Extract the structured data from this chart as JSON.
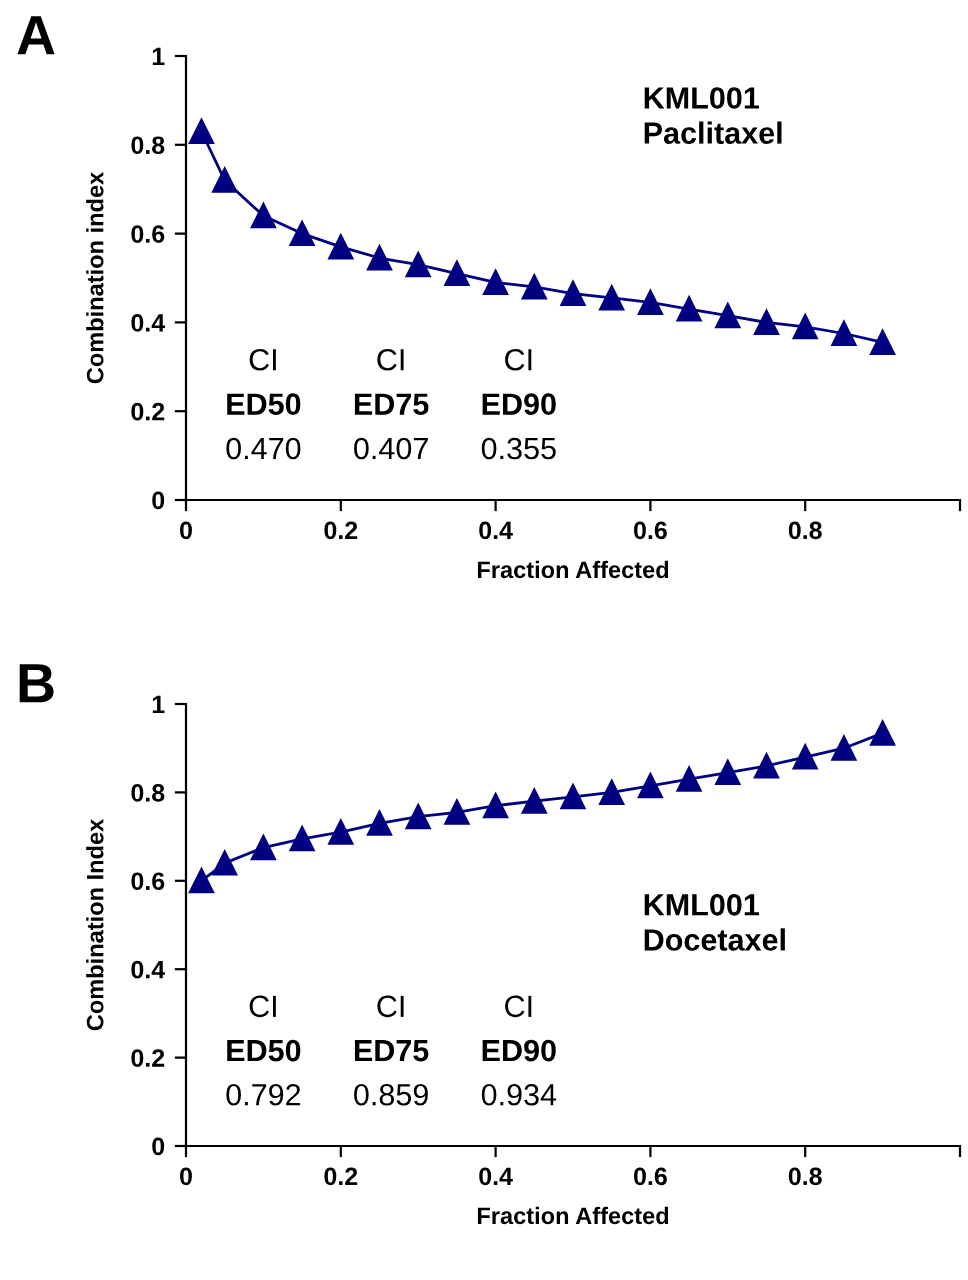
{
  "chart_data": [
    {
      "type": "line",
      "title": "A",
      "xlabel": "Fraction Affected",
      "ylabel": "Combination index",
      "xlim": [
        0,
        1
      ],
      "xticks": [
        0,
        0.2,
        0.4,
        0.6,
        0.8,
        {
          "value": 1,
          "label": null
        }
      ],
      "ylim": [
        0,
        1
      ],
      "yticks": [
        0,
        0.2,
        0.4,
        0.6,
        0.8,
        1
      ],
      "marker": "triangle",
      "line_style": "solid",
      "grid": false,
      "legend": false,
      "x": [
        0.02,
        0.05,
        0.1,
        0.15,
        0.2,
        0.25,
        0.3,
        0.35,
        0.4,
        0.45,
        0.5,
        0.55,
        0.6,
        0.65,
        0.7,
        0.75,
        0.8,
        0.85,
        0.9
      ],
      "series": [
        {
          "color": "#000080",
          "values": [
            0.83,
            0.72,
            0.64,
            0.6,
            0.57,
            0.545,
            0.53,
            0.51,
            0.49,
            0.48,
            0.465,
            0.455,
            0.445,
            0.43,
            0.415,
            0.4,
            0.39,
            0.375,
            0.355
          ]
        }
      ],
      "annotations": [
        "KML001\nPaclitaxel",
        "CI\nED50\n0.470",
        "CI\nED75\n0.407",
        "CI\nED90\n0.355"
      ]
    },
    {
      "type": "line",
      "title": "B",
      "xlabel": "Fraction Affected",
      "ylabel": "Combination Index",
      "xlim": [
        0,
        1
      ],
      "xticks": [
        0,
        0.2,
        0.4,
        0.6,
        0.8,
        {
          "value": 1,
          "label": null
        }
      ],
      "ylim": [
        0,
        1
      ],
      "yticks": [
        0,
        0.2,
        0.4,
        0.6,
        0.8,
        1
      ],
      "marker": "triangle",
      "line_style": "solid",
      "grid": false,
      "legend": false,
      "x": [
        0.02,
        0.05,
        0.1,
        0.15,
        0.2,
        0.25,
        0.3,
        0.35,
        0.4,
        0.45,
        0.5,
        0.55,
        0.6,
        0.65,
        0.7,
        0.75,
        0.8,
        0.85,
        0.9
      ],
      "series": [
        {
          "color": "#000080",
          "values": [
            0.6,
            0.64,
            0.675,
            0.695,
            0.71,
            0.73,
            0.745,
            0.755,
            0.77,
            0.78,
            0.79,
            0.8,
            0.815,
            0.83,
            0.845,
            0.86,
            0.88,
            0.9,
            0.934
          ]
        }
      ],
      "annotations": [
        "KML001\nDocetaxel",
        "CI\nED50\n0.792",
        "CI\nED75\n0.859",
        "CI\nED90\n0.934"
      ]
    }
  ]
}
